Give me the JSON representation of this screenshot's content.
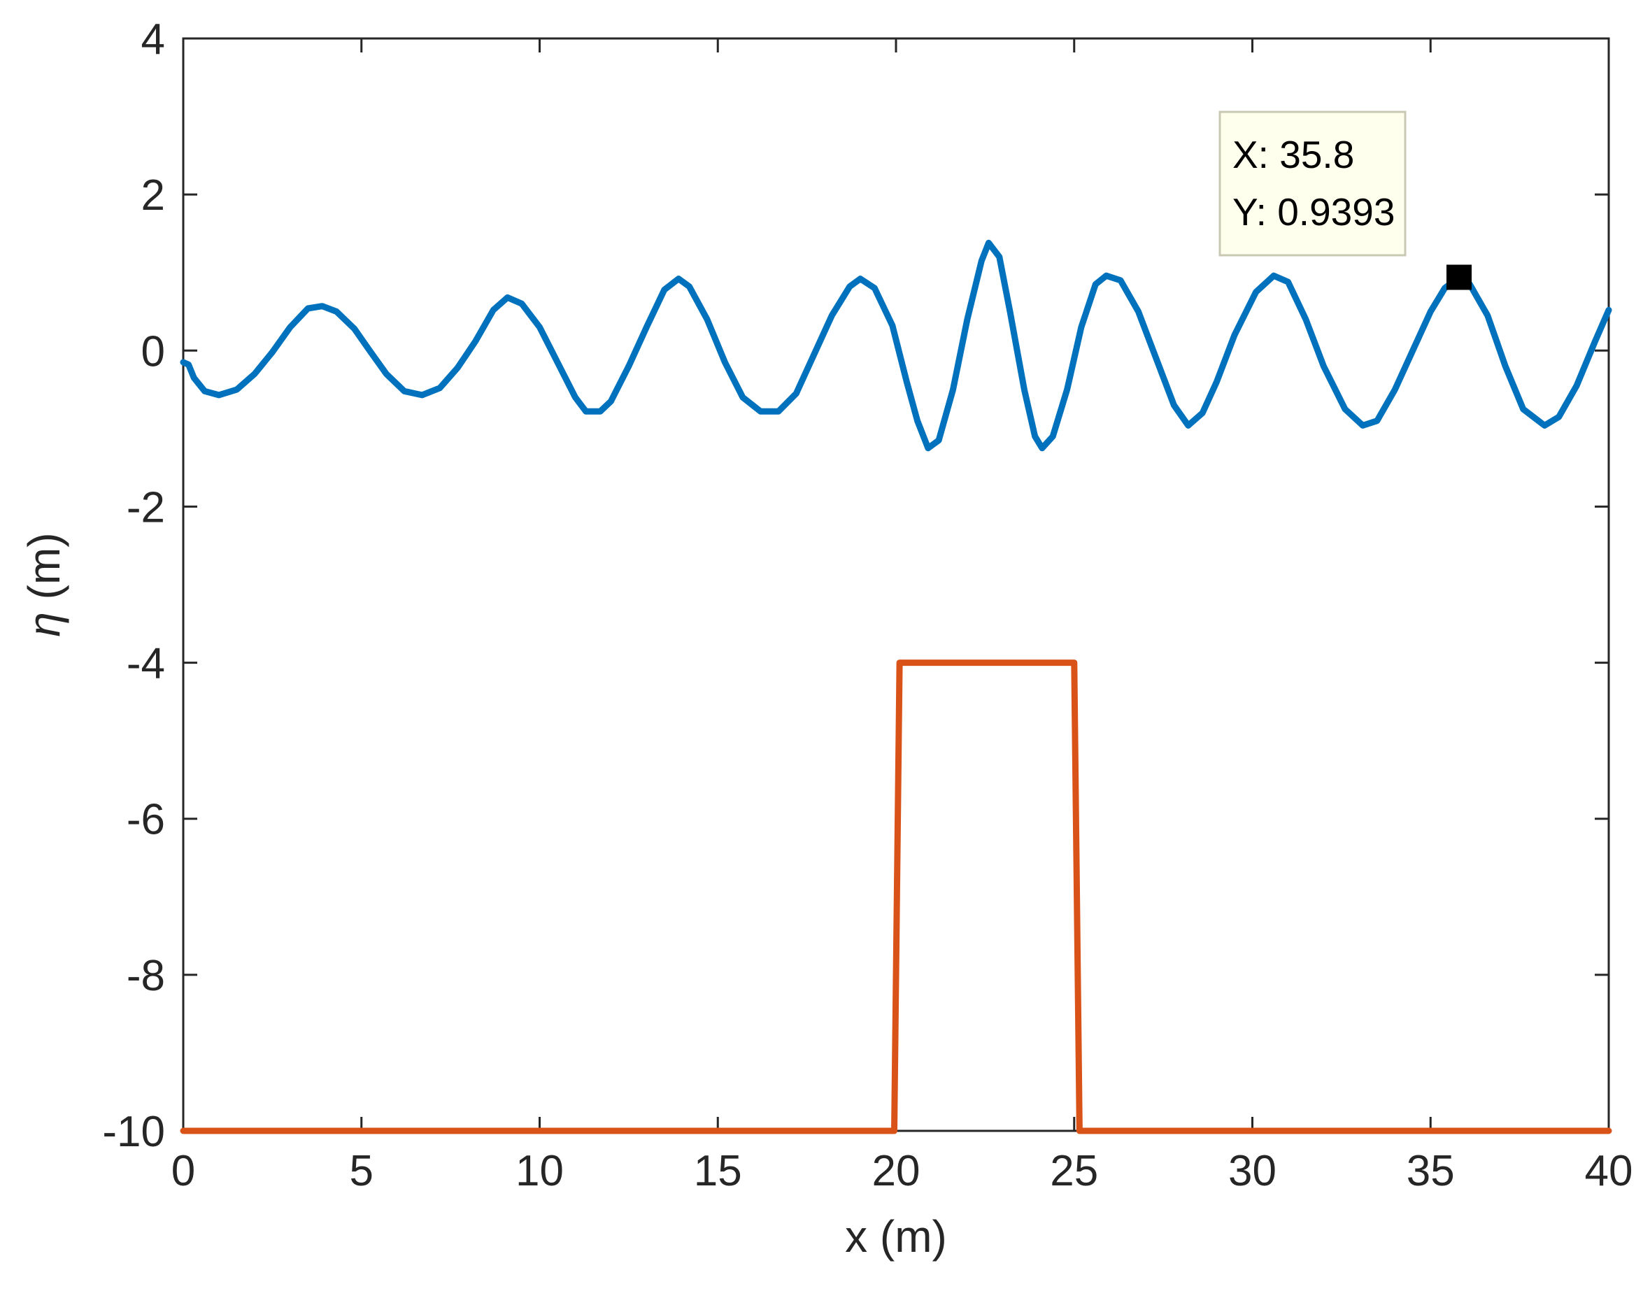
{
  "chart_data": {
    "type": "line",
    "xlabel": "x (m)",
    "ylabel_symbol": "η",
    "ylabel_unit": " (m)",
    "xlim": [
      0,
      40
    ],
    "ylim": [
      -10,
      4
    ],
    "xticks": [
      0,
      5,
      10,
      15,
      20,
      25,
      30,
      35,
      40
    ],
    "yticks": [
      -10,
      -8,
      -6,
      -4,
      -2,
      0,
      2,
      4
    ],
    "grid": false,
    "legend": "none",
    "series": [
      {
        "color": "#0072BD",
        "points": [
          [
            0,
            -0.15
          ],
          [
            0.15,
            -0.18
          ],
          [
            0.3,
            -0.35
          ],
          [
            0.6,
            -0.52
          ],
          [
            1.0,
            -0.57
          ],
          [
            1.5,
            -0.5
          ],
          [
            2.0,
            -0.3
          ],
          [
            2.5,
            -0.02
          ],
          [
            3.0,
            0.3
          ],
          [
            3.5,
            0.54
          ],
          [
            3.9,
            0.57
          ],
          [
            4.3,
            0.5
          ],
          [
            4.8,
            0.28
          ],
          [
            5.2,
            0.02
          ],
          [
            5.7,
            -0.3
          ],
          [
            6.2,
            -0.52
          ],
          [
            6.7,
            -0.57
          ],
          [
            7.2,
            -0.48
          ],
          [
            7.7,
            -0.22
          ],
          [
            8.2,
            0.12
          ],
          [
            8.7,
            0.52
          ],
          [
            9.1,
            0.68
          ],
          [
            9.5,
            0.6
          ],
          [
            10.0,
            0.3
          ],
          [
            10.5,
            -0.15
          ],
          [
            11.0,
            -0.6
          ],
          [
            11.3,
            -0.78
          ],
          [
            11.7,
            -0.78
          ],
          [
            12.0,
            -0.65
          ],
          [
            12.5,
            -0.2
          ],
          [
            13.0,
            0.3
          ],
          [
            13.5,
            0.78
          ],
          [
            13.9,
            0.92
          ],
          [
            14.2,
            0.82
          ],
          [
            14.7,
            0.4
          ],
          [
            15.2,
            -0.15
          ],
          [
            15.7,
            -0.6
          ],
          [
            16.2,
            -0.78
          ],
          [
            16.7,
            -0.78
          ],
          [
            17.2,
            -0.55
          ],
          [
            17.7,
            -0.05
          ],
          [
            18.2,
            0.45
          ],
          [
            18.7,
            0.82
          ],
          [
            19.0,
            0.92
          ],
          [
            19.4,
            0.8
          ],
          [
            19.9,
            0.32
          ],
          [
            20.3,
            -0.4
          ],
          [
            20.6,
            -0.9
          ],
          [
            20.9,
            -1.25
          ],
          [
            21.2,
            -1.15
          ],
          [
            21.6,
            -0.5
          ],
          [
            22.0,
            0.4
          ],
          [
            22.4,
            1.15
          ],
          [
            22.6,
            1.38
          ],
          [
            22.9,
            1.2
          ],
          [
            23.2,
            0.5
          ],
          [
            23.6,
            -0.5
          ],
          [
            23.9,
            -1.1
          ],
          [
            24.1,
            -1.25
          ],
          [
            24.4,
            -1.1
          ],
          [
            24.8,
            -0.5
          ],
          [
            25.2,
            0.3
          ],
          [
            25.6,
            0.85
          ],
          [
            25.9,
            0.96
          ],
          [
            26.3,
            0.9
          ],
          [
            26.8,
            0.5
          ],
          [
            27.3,
            -0.1
          ],
          [
            27.8,
            -0.7
          ],
          [
            28.2,
            -0.96
          ],
          [
            28.6,
            -0.8
          ],
          [
            29.0,
            -0.4
          ],
          [
            29.5,
            0.2
          ],
          [
            30.1,
            0.75
          ],
          [
            30.6,
            0.96
          ],
          [
            31.0,
            0.88
          ],
          [
            31.5,
            0.4
          ],
          [
            32.0,
            -0.2
          ],
          [
            32.6,
            -0.75
          ],
          [
            33.1,
            -0.96
          ],
          [
            33.5,
            -0.9
          ],
          [
            34.0,
            -0.5
          ],
          [
            34.5,
            0.0
          ],
          [
            35.0,
            0.5
          ],
          [
            35.4,
            0.8
          ],
          [
            35.8,
            0.94
          ],
          [
            36.1,
            0.85
          ],
          [
            36.6,
            0.45
          ],
          [
            37.1,
            -0.2
          ],
          [
            37.6,
            -0.75
          ],
          [
            38.2,
            -0.96
          ],
          [
            38.6,
            -0.85
          ],
          [
            39.1,
            -0.45
          ],
          [
            39.6,
            0.1
          ],
          [
            40.0,
            0.52
          ]
        ]
      },
      {
        "color": "#D95319",
        "points": [
          [
            0,
            -10
          ],
          [
            19.95,
            -10
          ],
          [
            20.1,
            -4
          ],
          [
            25.0,
            -4
          ],
          [
            25.15,
            -10
          ],
          [
            40,
            -10
          ]
        ]
      }
    ],
    "datatip": {
      "x": 35.8,
      "y": 0.9393,
      "x_text": "X: 35.8",
      "y_text": "Y: 0.9393"
    }
  }
}
